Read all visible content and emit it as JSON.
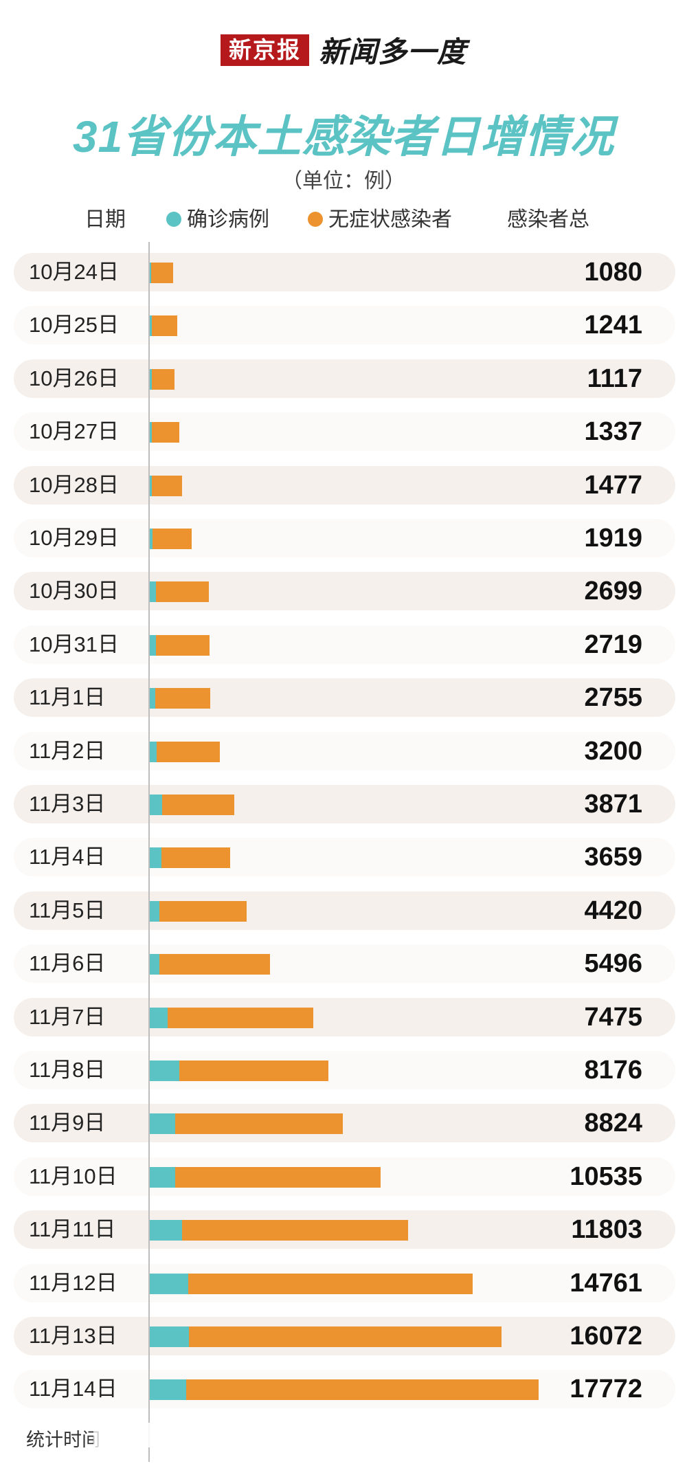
{
  "brand": {
    "box": "新京报",
    "text": "新闻多一度"
  },
  "title": "31省份本土感染者日增情况",
  "unit": "（单位：例）",
  "header": {
    "date": "日期",
    "confirmed": "确诊病例",
    "asymptomatic": "无症状感染者",
    "total": "感染者总"
  },
  "footer": "统计时间",
  "colors": {
    "confirmed": "#5cc3c4",
    "asymptomatic": "#ec922e",
    "title": "#5cc3c4",
    "brand": "#b5191c"
  },
  "chart_data": {
    "type": "bar",
    "orientation": "horizontal",
    "stacked": true,
    "title": "31省份本土感染者日增情况",
    "unit": "（单位：例）",
    "categories": [
      "10月24日",
      "10月25日",
      "10月26日",
      "10月27日",
      "10月28日",
      "10月29日",
      "10月30日",
      "10月31日",
      "11月1日",
      "11月2日",
      "11月3日",
      "11月4日",
      "11月5日",
      "11月6日",
      "11月7日",
      "11月8日",
      "11月9日",
      "11月10日",
      "11月11日",
      "11月12日",
      "11月13日",
      "11月14日"
    ],
    "series": [
      {
        "name": "确诊病例",
        "values": [
          76,
          80,
          80,
          87,
          97,
          125,
          293,
          283,
          249,
          322,
          571,
          527,
          449,
          437,
          830,
          1344,
          1165,
          1165,
          1487,
          1762,
          1802,
          1662
        ]
      },
      {
        "name": "无症状感染者",
        "values": [
          1004,
          1161,
          1037,
          1250,
          1380,
          1794,
          2406,
          2436,
          2506,
          2878,
          3300,
          3132,
          3971,
          5059,
          6645,
          6832,
          7659,
          9370,
          10316,
          12999,
          14270,
          16110
        ]
      }
    ],
    "totals": [
      1080,
      1241,
      1117,
      1337,
      1477,
      1919,
      2699,
      2719,
      2755,
      3200,
      3871,
      3659,
      4420,
      5496,
      7475,
      8176,
      8824,
      10535,
      11803,
      14761,
      16072,
      17772
    ],
    "xlim": [
      0,
      17772
    ],
    "legend": "top"
  }
}
